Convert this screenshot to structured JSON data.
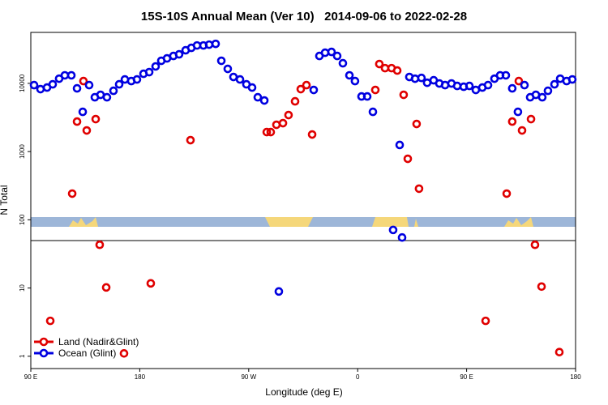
{
  "chart_data": {
    "type": "scatter",
    "title": "15S-10S Annual Mean (Ver 10)   2014-09-06 to 2022-02-28",
    "x_label": "Longitude (deg E)",
    "y_label": "N Total",
    "log_y": true,
    "legend": "lower left",
    "xlim": [
      90,
      540
    ],
    "xticks": [
      {
        "value": 90,
        "label": "90 E"
      },
      180,
      {
        "value": 270,
        "label": "90 W"
      },
      {
        "value": 360,
        "label": "0"
      },
      {
        "value": 450,
        "label": "90 E"
      },
      {
        "value": 540,
        "label": "180"
      }
    ],
    "ylim": [
      0.66,
      55800
    ],
    "yticks": [
      1,
      10,
      100,
      1000,
      10000
    ],
    "series": [
      {
        "name": "Land (Nadir&Glint)",
        "color": "#e00000",
        "x": [
          106.1,
          124.2,
          128.2,
          133.5,
          136.2,
          143.6,
          146.9,
          152.3,
          167.0,
          189.1,
          221.9,
          284.9,
          288.2,
          292.9,
          298.3,
          302.9,
          308.3,
          313.0,
          317.7,
          322.4,
          374.6,
          377.9,
          382.6,
          388.0,
          392.7,
          398.0,
          401.4,
          408.7,
          410.7,
          465.7,
          483.1,
          487.7,
          493.1,
          495.8,
          503.2,
          506.5,
          511.9,
          526.6
        ],
        "values": [
          3.3,
          242,
          2750,
          10800,
          2040,
          2990,
          43,
          10.2,
          1.1,
          11.7,
          1470,
          1930,
          1930,
          2470,
          2610,
          3430,
          5450,
          8220,
          9420,
          1780,
          8000,
          19200,
          16700,
          16700,
          15400,
          6790,
          784,
          2540,
          286,
          3.3,
          242,
          2750,
          10800,
          2040,
          2990,
          43,
          10.5,
          1.15
        ]
      },
      {
        "name": "Ocean (Glint)",
        "color": "#0000e0",
        "x": [
          92.7,
          98.0,
          103.4,
          108.1,
          113.4,
          118.1,
          123.5,
          128.2,
          132.9,
          138.2,
          142.9,
          147.6,
          152.9,
          158.3,
          163.0,
          167.7,
          173.0,
          177.7,
          183.1,
          187.8,
          193.1,
          197.8,
          202.5,
          207.8,
          212.5,
          217.9,
          222.6,
          227.3,
          232.6,
          237.3,
          242.7,
          247.4,
          252.7,
          257.4,
          262.8,
          268.1,
          272.8,
          277.5,
          282.9,
          294.9,
          323.7,
          328.4,
          333.1,
          338.4,
          343.1,
          347.8,
          353.2,
          357.8,
          363.2,
          367.9,
          372.6,
          389.3,
          394.7,
          396.7,
          402.7,
          407.4,
          412.7,
          417.4,
          422.8,
          427.5,
          432.2,
          437.5,
          442.2,
          447.6,
          452.3,
          457.6,
          463.0,
          467.7,
          473.0,
          477.7,
          482.4,
          487.7,
          492.4,
          497.8,
          502.5,
          507.2,
          512.5,
          517.2,
          522.6,
          527.3,
          532.6,
          537.3
        ],
        "values": [
          9420,
          8220,
          8680,
          9680,
          11700,
          13100,
          13100,
          8440,
          3820,
          9420,
          6250,
          6790,
          6250,
          7780,
          9680,
          11400,
          10800,
          11400,
          13800,
          14600,
          17700,
          21400,
          23200,
          25200,
          26600,
          30500,
          33100,
          35900,
          35900,
          36900,
          37900,
          21400,
          16300,
          12400,
          11400,
          9680,
          8680,
          6250,
          5610,
          8.9,
          8000,
          25200,
          28100,
          28900,
          25200,
          19700,
          13100,
          10800,
          6420,
          6420,
          3820,
          71,
          1250,
          55,
          12400,
          11700,
          12000,
          10200,
          11100,
          9950,
          9420,
          9950,
          9160,
          8910,
          9160,
          8000,
          8680,
          9420,
          11700,
          13100,
          13100,
          8440,
          3820,
          9420,
          6250,
          6790,
          6250,
          7780,
          9680,
          11700,
          10800,
          11400
        ]
      }
    ]
  }
}
